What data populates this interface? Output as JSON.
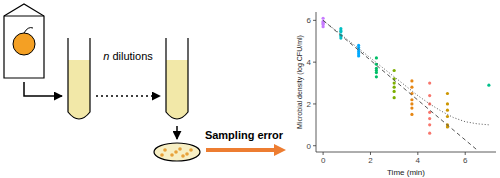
{
  "diagram": {
    "dilution_label": "n dilutions",
    "arrow_label": "Sampling error"
  },
  "chart_data": {
    "type": "scatter",
    "x_label": "Time (min)",
    "y_label": "Microbial density (log CFU/ml)",
    "xlim": [
      -0.3,
      7.3
    ],
    "ylim": [
      -0.3,
      6.4
    ],
    "xticks": [
      0,
      2,
      4,
      6
    ],
    "yticks": [
      0,
      2,
      4,
      6
    ],
    "grid": false,
    "series": [
      {
        "color": "#c77cff",
        "marker": "circle",
        "x": [
          0,
          0,
          0,
          0,
          0,
          0
        ],
        "values": [
          6.1,
          5.95,
          5.85,
          5.8,
          5.7,
          5.9
        ]
      },
      {
        "color": "#00bfc4",
        "marker": "circle",
        "x": [
          0.75,
          0.75,
          0.75,
          0.75,
          0.75,
          0.75
        ],
        "values": [
          5.6,
          5.45,
          5.3,
          5.25,
          5.15,
          5.5
        ]
      },
      {
        "color": "#00a9ff",
        "marker": "circle",
        "x": [
          1.5,
          1.5,
          1.5,
          1.5,
          1.5,
          1.5
        ],
        "values": [
          4.8,
          4.6,
          4.5,
          4.4,
          4.3,
          4.7
        ]
      },
      {
        "color": "#00be67",
        "marker": "circle",
        "x": [
          2.25,
          2.25,
          2.25,
          2.25,
          2.25,
          2.25
        ],
        "values": [
          4.2,
          3.9,
          3.7,
          3.6,
          3.5,
          3.3
        ]
      },
      {
        "color": "#7cae00",
        "marker": "circle",
        "x": [
          3,
          3,
          3,
          3,
          3,
          3
        ],
        "values": [
          3.6,
          3.2,
          3.0,
          2.8,
          2.6,
          2.3
        ]
      },
      {
        "color": "#e68613",
        "marker": "circle",
        "x": [
          3.75,
          3.75,
          3.75,
          3.75,
          3.75,
          3.75,
          3.75
        ],
        "values": [
          2.8,
          2.5,
          2.2,
          2.0,
          1.8,
          1.5,
          3.1
        ]
      },
      {
        "color": "#f8766d",
        "marker": "circle",
        "x": [
          4.5,
          4.5,
          4.5,
          4.5,
          4.5,
          4.5,
          4.5
        ],
        "values": [
          2.4,
          2.0,
          1.6,
          1.3,
          1.0,
          0.6,
          3.0
        ]
      },
      {
        "color": "#cd9600",
        "marker": "circle",
        "x": [
          5.25,
          5.25,
          5.25,
          5.25,
          5.25,
          5.25
        ],
        "values": [
          2.0,
          1.7,
          1.4,
          1.0,
          2.5,
          0.9
        ]
      },
      {
        "color": "#00c08b",
        "marker": "circle",
        "x": [
          7
        ],
        "values": [
          2.9
        ]
      },
      {
        "type": "line",
        "color": "#555555",
        "line_style": "dashed",
        "x": [
          0,
          6.5
        ],
        "values": [
          6.0,
          -0.2
        ]
      },
      {
        "type": "line",
        "color": "#555555",
        "line_style": "dotted",
        "x": [
          0,
          0.5,
          1,
          1.5,
          2,
          2.5,
          3,
          3.5,
          4,
          4.5,
          5,
          5.5,
          6,
          6.5,
          7
        ],
        "values": [
          6.0,
          5.55,
          5.1,
          4.65,
          4.2,
          3.75,
          3.3,
          2.85,
          2.4,
          2.0,
          1.65,
          1.35,
          1.15,
          1.05,
          1.0
        ]
      }
    ]
  }
}
